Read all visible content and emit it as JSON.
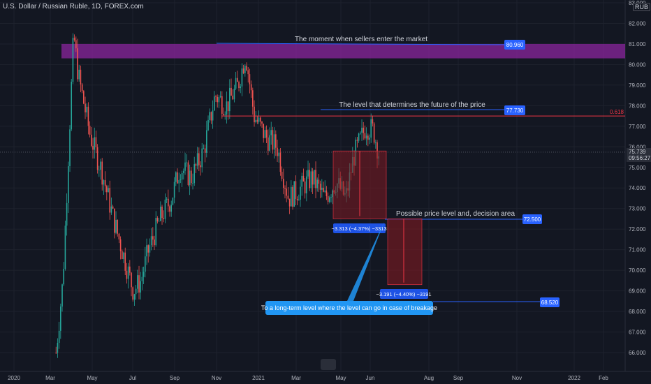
{
  "header": {
    "symbol_title": "U.S. Dollar / Russian Ruble, 1D, FOREX.com",
    "currency": "RUB"
  },
  "colors": {
    "background": "#131722",
    "up": "#26a69a",
    "down": "#ef5350",
    "grid": "#1e222d",
    "line_blue": "#2962ff",
    "line_red": "#f23645",
    "zone_purple": "#9c27b0",
    "box_red": "#801922"
  },
  "chart_data": {
    "type": "line",
    "symbol": "USDRUB",
    "ylim": [
      65.5,
      83
    ],
    "y_ticks": [
      66,
      67,
      68,
      69,
      70,
      71,
      72,
      73,
      74,
      75,
      76,
      77,
      78,
      79,
      80,
      81,
      82,
      83
    ],
    "x_ticks": [
      "2020",
      "Mar",
      "May",
      "Jul",
      "Sep",
      "Nov",
      "2021",
      "Mar",
      "May",
      "Jun",
      "Aug",
      "Sep",
      "Nov",
      "2022",
      "Feb"
    ],
    "last_price": "75.739",
    "countdown": "09:56:27",
    "series": [
      {
        "x": [
          "2020-02-25",
          "2020-03-05",
          "2020-03-15",
          "2020-03-19",
          "2020-03-25",
          "2020-04-10",
          "2020-04-25",
          "2020-05-10",
          "2020-05-25",
          "2020-06-05",
          "2020-06-15",
          "2020-06-25",
          "2020-07-10",
          "2020-07-25",
          "2020-08-05",
          "2020-08-20",
          "2020-09-05",
          "2020-09-20",
          "2020-10-05",
          "2020-10-20",
          "2020-10-30",
          "2020-11-10",
          "2020-11-25",
          "2020-12-10",
          "2020-12-25",
          "2021-01-10",
          "2021-01-25",
          "2021-02-10",
          "2021-02-25",
          "2021-03-10",
          "2021-03-20",
          "2021-04-05",
          "2021-04-15",
          "2021-04-22"
        ],
        "values": [
          66.0,
          69.5,
          78.0,
          81.5,
          79.5,
          76.5,
          74.8,
          72.5,
          70.5,
          69.0,
          69.5,
          71.0,
          72.5,
          73.5,
          75.0,
          74.5,
          75.8,
          78.5,
          78.0,
          79.0,
          80.5,
          77.5,
          76.5,
          76.0,
          73.5,
          74.0,
          74.5,
          73.5,
          74.3,
          73.5,
          75.5,
          77.0,
          76.8,
          75.7
        ]
      }
    ],
    "annotations": {
      "sellers_zone": {
        "top": 81.0,
        "bottom": 80.3,
        "price_label": "80.960",
        "text": "The moment when sellers enter the market"
      },
      "key_level": {
        "price": 77.5,
        "price_label": "77.730",
        "text": "The level that determines the future of the price",
        "fib_label": "0.618"
      },
      "short_1": {
        "from": 75.8,
        "to": 72.5,
        "label": "−3.313 (−4.37%) −3313"
      },
      "decision": {
        "price_label": "72.500",
        "text": "Possible price level and, decision area"
      },
      "short_2": {
        "from": 72.5,
        "to": 69.3,
        "label": "−3.191 (−4.40%) −3191"
      },
      "long_term": {
        "price_label": "68.520",
        "text": "To a long-term level where the level can go in case of breakage"
      }
    }
  }
}
